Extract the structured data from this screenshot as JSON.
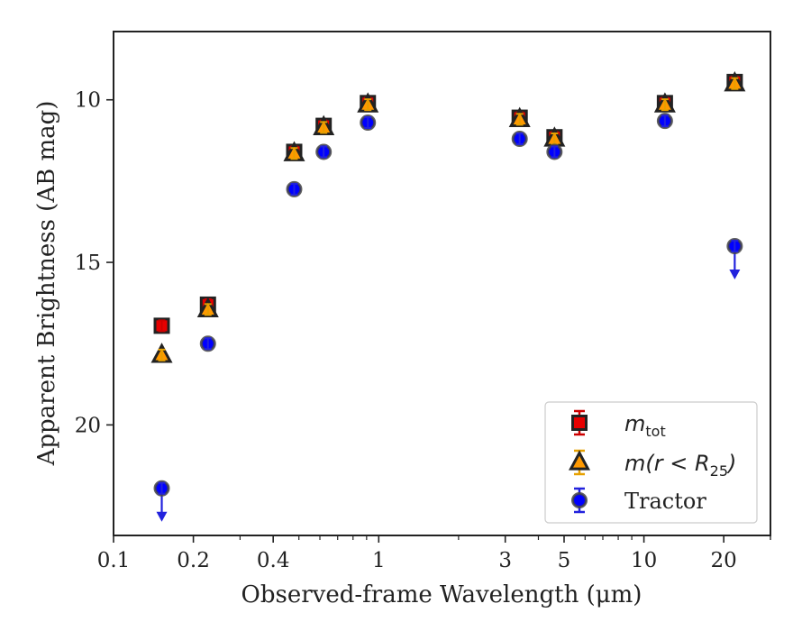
{
  "chart_data": {
    "type": "scatter",
    "title": "",
    "xlabel": "Observed-frame Wavelength (μm)",
    "ylabel": "Apparent Brightness (AB mag)",
    "xscale": "log",
    "xlim": [
      0.1,
      30
    ],
    "ylim": [
      23.4,
      7.9
    ],
    "y_inverted": true,
    "xticks": [
      {
        "value": 0.1,
        "label": "0.1"
      },
      {
        "value": 0.2,
        "label": "0.2"
      },
      {
        "value": 0.4,
        "label": "0.4"
      },
      {
        "value": 1,
        "label": "1"
      },
      {
        "value": 3,
        "label": "3"
      },
      {
        "value": 5,
        "label": "5"
      },
      {
        "value": 10,
        "label": "10"
      },
      {
        "value": 20,
        "label": "20"
      }
    ],
    "yticks": [
      {
        "value": 10,
        "label": "10"
      },
      {
        "value": 15,
        "label": "15"
      },
      {
        "value": 20,
        "label": "20"
      }
    ],
    "grid": false,
    "legend_position": "bottom-right",
    "series": [
      {
        "name": "m_tot",
        "legend_text": "m",
        "legend_sub": "tot",
        "marker": "square",
        "fill": "#e60000",
        "edge": "#222222",
        "errcolor": "#cc0000",
        "points": [
          {
            "x": 0.152,
            "y": 16.95
          },
          {
            "x": 0.227,
            "y": 16.3
          },
          {
            "x": 0.48,
            "y": 11.6
          },
          {
            "x": 0.62,
            "y": 10.8
          },
          {
            "x": 0.91,
            "y": 10.1
          },
          {
            "x": 3.4,
            "y": 10.55
          },
          {
            "x": 4.6,
            "y": 11.15
          },
          {
            "x": 12.0,
            "y": 10.1
          },
          {
            "x": 22.0,
            "y": 9.45
          }
        ]
      },
      {
        "name": "m(r < R_25)",
        "legend_text": "m(r < R",
        "legend_sub": "25",
        "legend_tail": ")",
        "marker": "triangle",
        "fill": "#ff9900",
        "edge": "#222222",
        "errcolor": "#e6a000",
        "points": [
          {
            "x": 0.152,
            "y": 17.85
          },
          {
            "x": 0.227,
            "y": 16.45
          },
          {
            "x": 0.48,
            "y": 11.65
          },
          {
            "x": 0.62,
            "y": 10.85
          },
          {
            "x": 0.91,
            "y": 10.15
          },
          {
            "x": 3.4,
            "y": 10.6
          },
          {
            "x": 4.6,
            "y": 11.2
          },
          {
            "x": 12.0,
            "y": 10.15
          },
          {
            "x": 22.0,
            "y": 9.5
          }
        ]
      },
      {
        "name": "Tractor",
        "legend_text": "Tractor",
        "marker": "circle",
        "fill": "#0000ff",
        "edge": "#444444",
        "errcolor": "#2222dd",
        "points": [
          {
            "x": 0.152,
            "y": 21.95,
            "upper_limit": true
          },
          {
            "x": 0.227,
            "y": 17.5
          },
          {
            "x": 0.48,
            "y": 12.75
          },
          {
            "x": 0.62,
            "y": 11.6
          },
          {
            "x": 0.91,
            "y": 10.7
          },
          {
            "x": 3.4,
            "y": 11.2
          },
          {
            "x": 4.6,
            "y": 11.6
          },
          {
            "x": 12.0,
            "y": 10.65
          },
          {
            "x": 22.0,
            "y": 14.5,
            "upper_limit": true
          }
        ]
      }
    ]
  }
}
